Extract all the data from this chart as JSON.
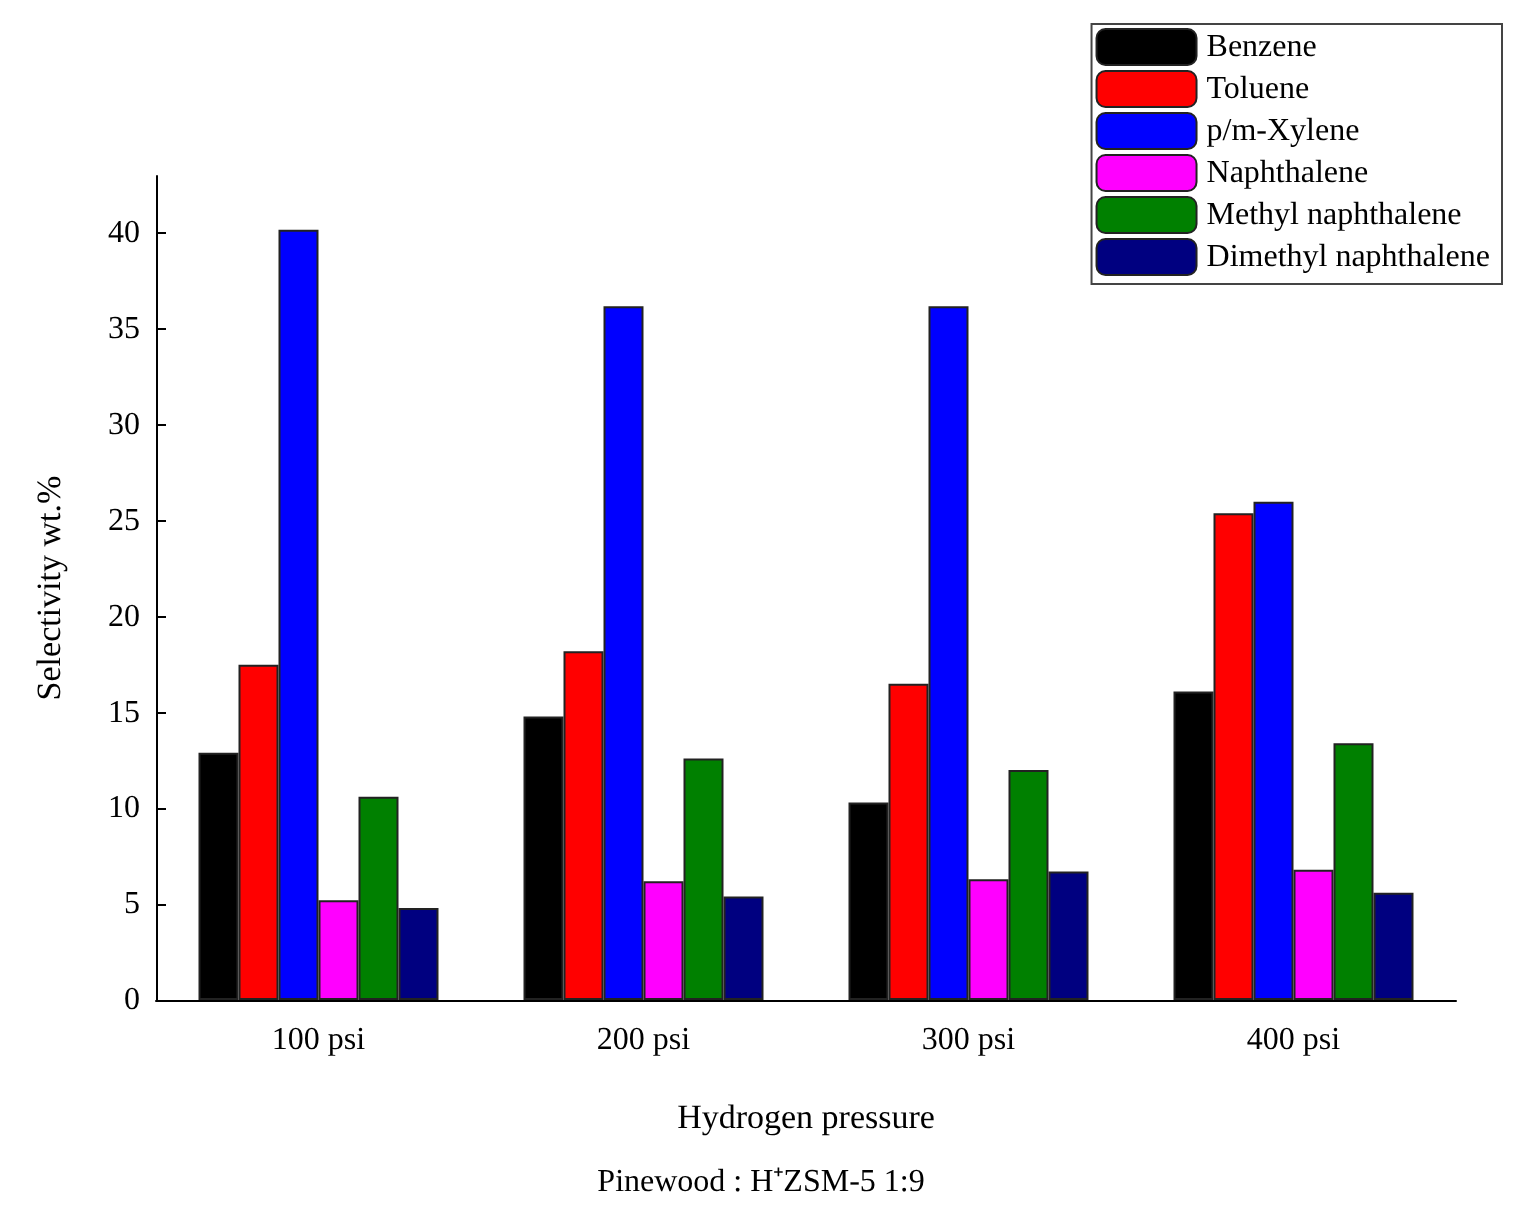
{
  "chart_data": {
    "type": "bar",
    "xlabel": "Hydrogen pressure",
    "ylabel": "Selectivity wt.%",
    "annotations": [
      "Pinewood : H⁺ZSM-5 1:9"
    ],
    "categories": [
      "100 psi",
      "200 psi",
      "300 psi",
      "400 psi"
    ],
    "series": [
      {
        "name": "Benzene",
        "color": "#000000",
        "values": [
          12.9,
          14.8,
          10.3,
          16.1
        ]
      },
      {
        "name": "Toluene",
        "color": "#ff0000",
        "values": [
          17.5,
          18.2,
          16.5,
          25.4
        ]
      },
      {
        "name": "p/m-Xylene",
        "color": "#0000ff",
        "values": [
          40.2,
          36.2,
          36.2,
          26.0
        ]
      },
      {
        "name": "Naphthalene",
        "color": "#ff00ff",
        "values": [
          5.2,
          6.2,
          6.3,
          6.8
        ]
      },
      {
        "name": "Methyl naphthalene",
        "color": "#008000",
        "values": [
          10.6,
          12.6,
          12.0,
          13.4
        ]
      },
      {
        "name": "Dimethyl naphthalene",
        "color": "#000080",
        "values": [
          4.8,
          5.4,
          6.7,
          5.6
        ]
      }
    ],
    "ylim": [
      0,
      43
    ],
    "yticks": [
      0,
      5,
      10,
      15,
      20,
      25,
      30,
      35,
      40
    ],
    "grid": false,
    "legend": "top right"
  }
}
